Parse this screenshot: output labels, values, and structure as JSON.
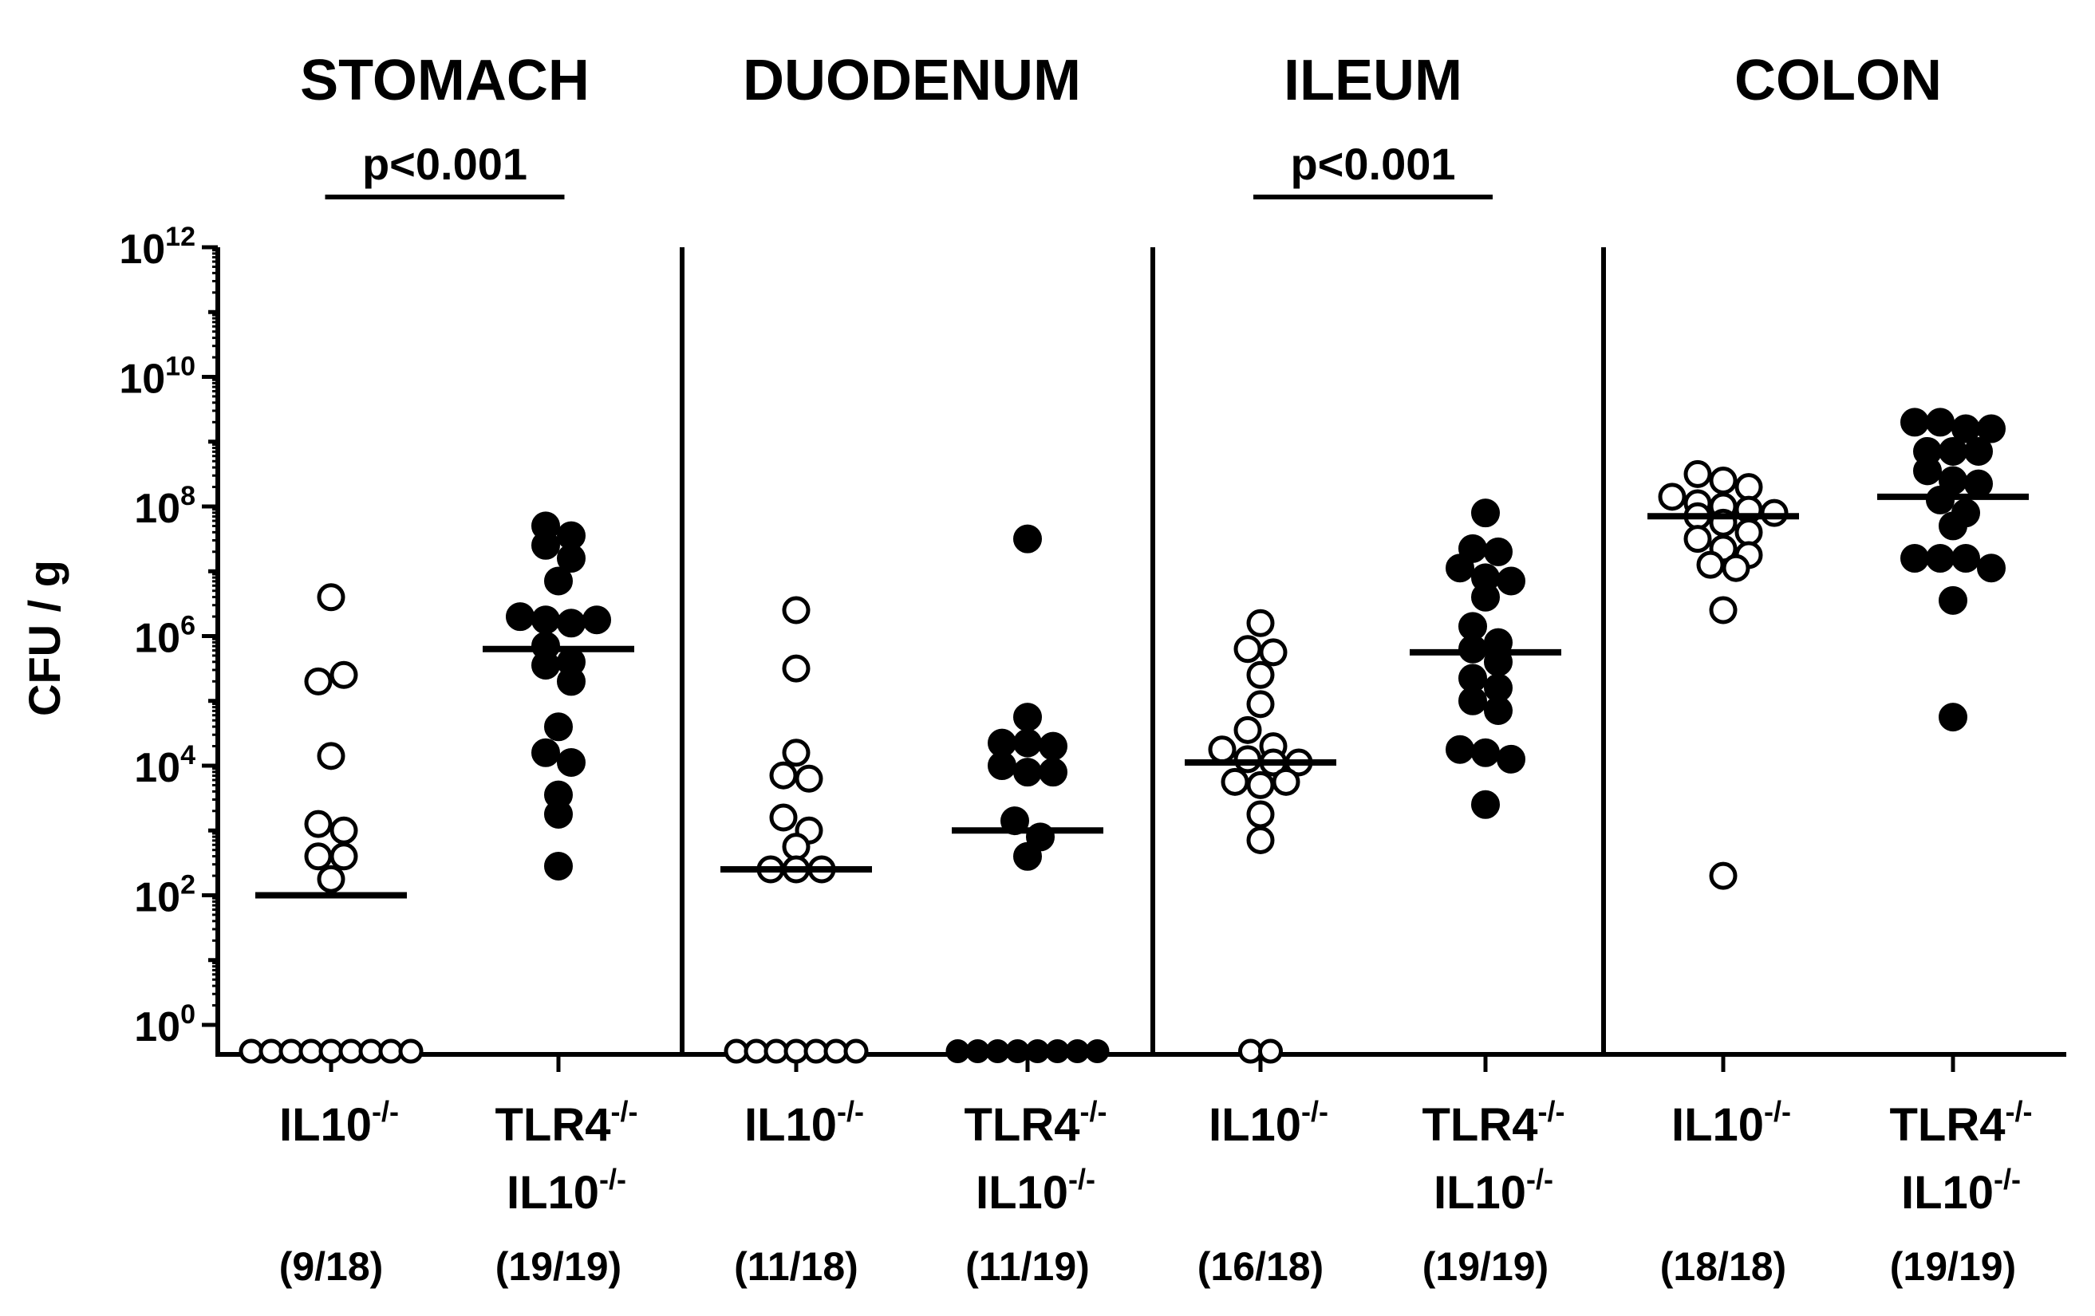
{
  "chart_data": {
    "type": "scatter",
    "ylabel": "CFU / g",
    "yscale": "log10",
    "ylim_log10": [
      0,
      12
    ],
    "yticks": [
      {
        "base": "10",
        "exp": "0"
      },
      {
        "base": "10",
        "exp": "2"
      },
      {
        "base": "10",
        "exp": "4"
      },
      {
        "base": "10",
        "exp": "6"
      },
      {
        "base": "10",
        "exp": "8"
      },
      {
        "base": "10",
        "exp": "10"
      },
      {
        "base": "10",
        "exp": "12"
      }
    ],
    "panels": [
      {
        "title": "STOMACH",
        "significance": "p<0.001",
        "groups": [
          {
            "name_line1": "IL10",
            "name_line1_sup": "-/-",
            "name_line2": "",
            "name_line2_sup": "",
            "count": "(9/18)",
            "marker": "open",
            "median_log10": 2.0,
            "zero_count": 9,
            "values_log10": [
              6.6,
              5.3,
              5.4,
              4.15,
              3.1,
              3.0,
              2.6,
              2.6,
              2.25
            ]
          },
          {
            "name_line1": "TLR4",
            "name_line1_sup": "-/-",
            "name_line2": "IL10",
            "name_line2_sup": "-/-",
            "count": "(19/19)",
            "marker": "filled",
            "median_log10": 5.8,
            "zero_count": 0,
            "values_log10": [
              7.7,
              7.55,
              7.4,
              7.2,
              6.85,
              6.3,
              6.25,
              6.2,
              6.25,
              5.85,
              5.6,
              5.55,
              5.3,
              4.6,
              4.2,
              4.05,
              3.55,
              3.25,
              2.45
            ]
          }
        ]
      },
      {
        "title": "DUODENUM",
        "significance": "",
        "groups": [
          {
            "name_line1": "IL10",
            "name_line1_sup": "-/-",
            "name_line2": "",
            "name_line2_sup": "",
            "count": "(11/18)",
            "marker": "open",
            "median_log10": 2.4,
            "zero_count": 7,
            "values_log10": [
              6.4,
              5.5,
              4.2,
              3.85,
              3.8,
              3.2,
              3.0,
              2.75,
              2.4,
              2.4,
              2.4
            ]
          },
          {
            "name_line1": "TLR4",
            "name_line1_sup": "-/-",
            "name_line2": "IL10",
            "name_line2_sup": "-/-",
            "count": "(11/19)",
            "marker": "filled",
            "median_log10": 3.0,
            "zero_count": 8,
            "values_log10": [
              7.5,
              4.75,
              4.35,
              4.35,
              4.3,
              4.0,
              3.9,
              3.9,
              3.15,
              2.9,
              2.6
            ]
          }
        ]
      },
      {
        "title": "ILEUM",
        "significance": "p<0.001",
        "groups": [
          {
            "name_line1": "IL10",
            "name_line1_sup": "-/-",
            "name_line2": "",
            "name_line2_sup": "",
            "count": "(16/18)",
            "marker": "open",
            "median_log10": 4.05,
            "zero_count": 2,
            "values_log10": [
              6.2,
              5.8,
              5.75,
              5.4,
              4.95,
              4.55,
              4.3,
              4.25,
              4.1,
              4.05,
              4.05,
              3.75,
              3.7,
              3.75,
              3.25,
              2.85
            ]
          },
          {
            "name_line1": "TLR4",
            "name_line1_sup": "-/-",
            "name_line2": "IL10",
            "name_line2_sup": "-/-",
            "count": "(19/19)",
            "marker": "filled",
            "median_log10": 5.75,
            "zero_count": 0,
            "values_log10": [
              7.9,
              7.35,
              7.3,
              7.05,
              6.9,
              6.85,
              6.6,
              6.15,
              5.9,
              5.8,
              5.6,
              5.35,
              5.2,
              5.0,
              4.85,
              4.25,
              4.2,
              4.1,
              3.4
            ]
          }
        ]
      },
      {
        "title": "COLON",
        "significance": "",
        "groups": [
          {
            "name_line1": "IL10",
            "name_line1_sup": "-/-",
            "name_line2": "",
            "name_line2_sup": "",
            "count": "(18/18)",
            "marker": "open",
            "median_log10": 7.85,
            "zero_count": 0,
            "values_log10": [
              8.5,
              8.4,
              8.3,
              8.15,
              8.05,
              8.0,
              7.95,
              7.9,
              7.85,
              7.75,
              7.6,
              7.5,
              7.35,
              7.25,
              7.1,
              7.05,
              6.4,
              2.3
            ]
          },
          {
            "name_line1": "TLR4",
            "name_line1_sup": "-/-",
            "name_line2": "IL10",
            "name_line2_sup": "-/-",
            "count": "(19/19)",
            "marker": "filled",
            "median_log10": 8.15,
            "zero_count": 0,
            "values_log10": [
              9.3,
              9.3,
              9.2,
              9.2,
              8.85,
              8.85,
              8.85,
              8.55,
              8.4,
              8.35,
              8.1,
              7.9,
              7.7,
              7.2,
              7.2,
              7.2,
              7.05,
              6.55,
              4.75
            ]
          }
        ]
      }
    ]
  }
}
